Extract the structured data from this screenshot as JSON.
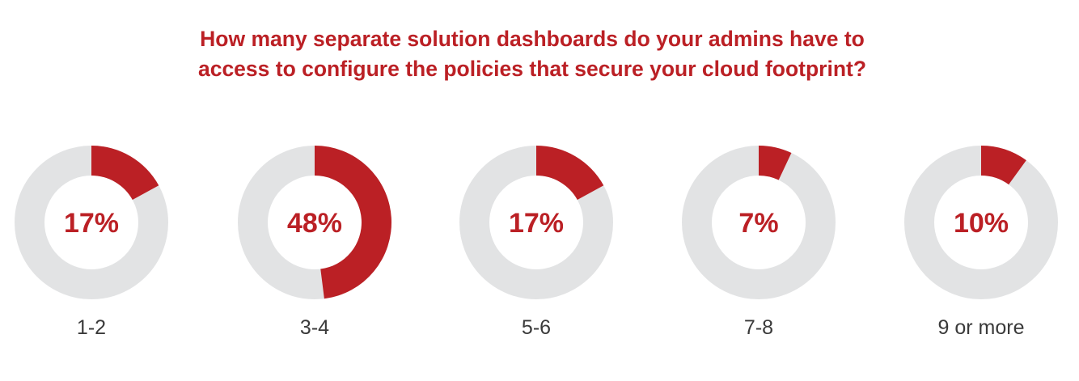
{
  "title_lines": [
    "How many separate solution dashboards do your admins have to",
    "access to configure the policies that secure your cloud footprint?"
  ],
  "colors": {
    "accent": "#bb2025",
    "track": "#e2e3e4",
    "label_text": "#3a3a3a"
  },
  "chart_data": {
    "type": "pie",
    "style": "donut",
    "title": "How many separate solution dashboards do your admins have to access to configure the policies that secure your cloud footprint?",
    "categories": [
      "1-2",
      "3-4",
      "5-6",
      "7-8",
      "9 or more"
    ],
    "values": [
      17,
      48,
      17,
      7,
      10
    ],
    "value_labels": [
      "17%",
      "48%",
      "17%",
      "7%",
      "10%"
    ],
    "unit": "%"
  }
}
